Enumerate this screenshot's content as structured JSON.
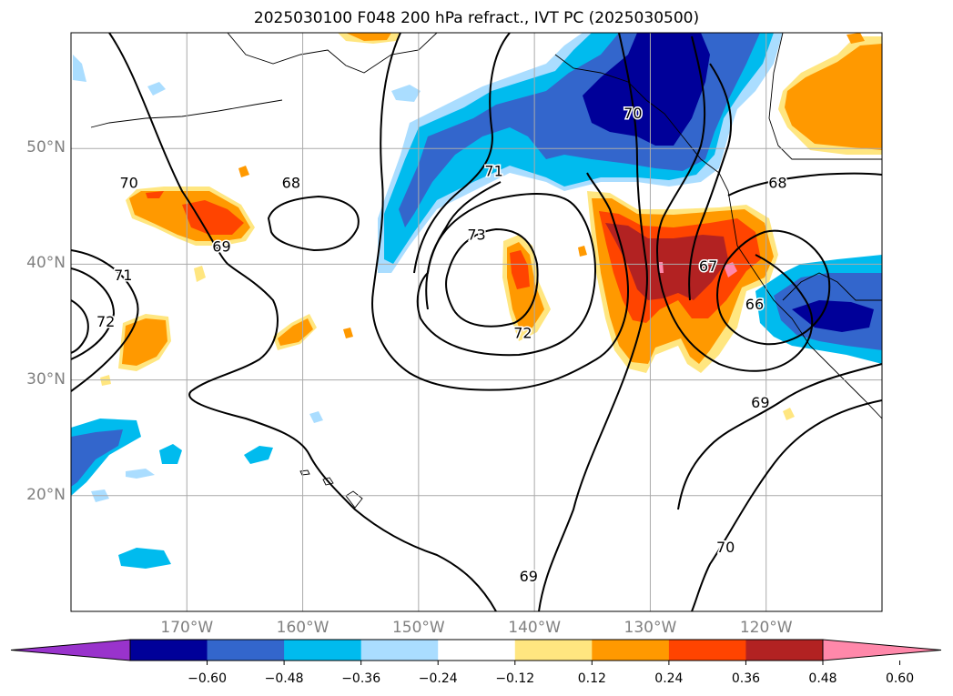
{
  "title": "2025030100 F048 200 hPa refract., IVT PC (2025030500)",
  "map": {
    "lat_labels": [
      "50°N",
      "40°N",
      "30°N",
      "20°N"
    ],
    "lat_values": [
      50,
      40,
      30,
      20
    ],
    "lon_labels": [
      "170°W",
      "160°W",
      "150°W",
      "140°W",
      "130°W",
      "120°W"
    ],
    "lon_values": [
      -170,
      -160,
      -150,
      -140,
      -130,
      -120
    ],
    "extent": {
      "lon_min": -180,
      "lon_max": -110,
      "lat_min": 10,
      "lat_max": 60
    },
    "contour_labels": [
      {
        "text": "70",
        "lon": -175,
        "lat": 47
      },
      {
        "text": "69",
        "lon": -167,
        "lat": 41.5
      },
      {
        "text": "68",
        "lon": -161,
        "lat": 47
      },
      {
        "text": "71",
        "lon": -175.5,
        "lat": 39
      },
      {
        "text": "72",
        "lon": -177,
        "lat": 35
      },
      {
        "text": "71",
        "lon": -143.5,
        "lat": 48
      },
      {
        "text": "73",
        "lon": -145,
        "lat": 42.5
      },
      {
        "text": "72",
        "lon": -141,
        "lat": 34
      },
      {
        "text": "70",
        "lon": -131.5,
        "lat": 53
      },
      {
        "text": "68",
        "lon": -119,
        "lat": 47
      },
      {
        "text": "67",
        "lon": -125,
        "lat": 39.8
      },
      {
        "text": "66",
        "lon": -121,
        "lat": 36.5
      },
      {
        "text": "69",
        "lon": -120.5,
        "lat": 28
      },
      {
        "text": "70",
        "lon": -123.5,
        "lat": 15.5
      },
      {
        "text": "69",
        "lon": -140.5,
        "lat": 13
      }
    ]
  },
  "colorbar": {
    "colors": [
      "#9933cc",
      "#000099",
      "#3366cc",
      "#00bbee",
      "#aaddff",
      "#ffffff",
      "#ffe680",
      "#ff9900",
      "#ff4400",
      "#b22222",
      "#ff88aa"
    ],
    "tick_labels": [
      "−0.60",
      "−0.48",
      "−0.36",
      "−0.24",
      "−0.12",
      "0.12",
      "0.24",
      "0.36",
      "0.48",
      "0.60"
    ]
  }
}
